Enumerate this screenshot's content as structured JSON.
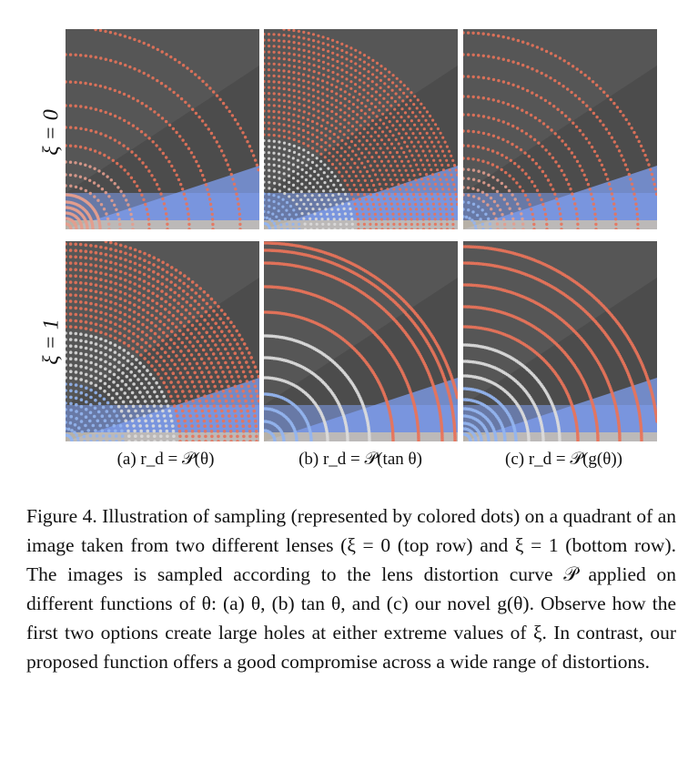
{
  "figure": {
    "row_labels": [
      "ξ = 0",
      "ξ = 1"
    ],
    "columns": [
      {
        "id": "a",
        "subcaption": "(a) r_d = 𝒫(θ)"
      },
      {
        "id": "b",
        "subcaption": "(b) r_d = 𝒫(tan θ)"
      },
      {
        "id": "c",
        "subcaption": "(c) r_d = 𝒫(g(θ))"
      }
    ],
    "caption": "Figure 4. Illustration of sampling (represented by colored dots) on a quadrant of an image taken from two different lenses (ξ = 0 (top row) and ξ = 1 (bottom row). The images is sampled according to the lens distortion curve 𝒫 applied on different functions of θ: (a) θ, (b) tan θ, and (c) our novel g(θ). Observe how the first two options create large holes at either extreme values of ξ. In contrast, our proposed function offers a good compromise across a wide range of distortions."
  },
  "colors": {
    "background_dark": "#4c4c4c",
    "sky_blue": "#7f9ff0",
    "dot_red": "#e8735a",
    "dot_white": "#dcdcdc",
    "dot_blue": "#93b5f0"
  }
}
